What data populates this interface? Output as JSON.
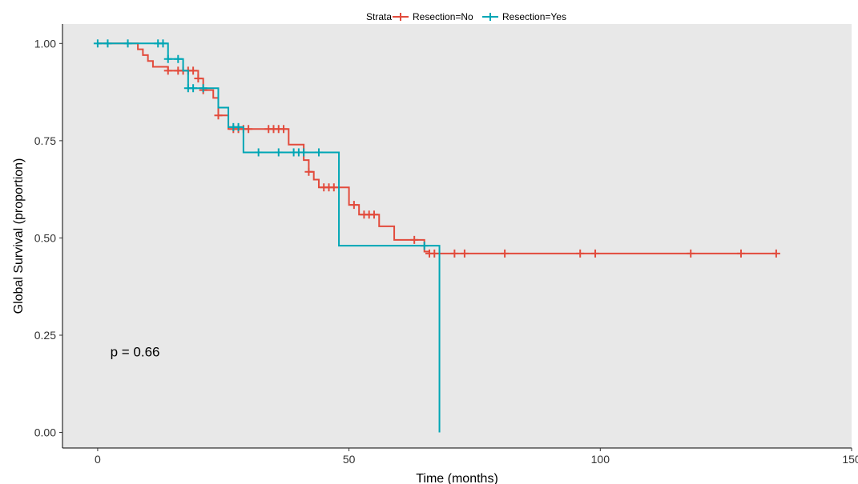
{
  "chart_data": {
    "type": "line",
    "title": "",
    "xlabel": "Time (months)",
    "ylabel": "Global Survival (proportion)",
    "xlim": [
      -7,
      150
    ],
    "ylim": [
      -0.04,
      1.05
    ],
    "x_ticks": [
      0,
      50,
      100,
      150
    ],
    "x_tick_labels": [
      "0",
      "50",
      "100",
      "150"
    ],
    "y_ticks": [
      0,
      0.25,
      0.5,
      0.75,
      1.0
    ],
    "y_tick_labels": [
      "0.00",
      "0.25",
      "0.50",
      "0.75",
      "1.00"
    ],
    "grid": false,
    "background": "#e8e8e8",
    "legend": {
      "position": "top",
      "title": "Strata",
      "entries": [
        "Resection=No",
        "Resection=Yes"
      ]
    },
    "annotations": [
      {
        "text": "p = 0.66",
        "x": 2.5,
        "y": 0.195
      }
    ],
    "series": [
      {
        "name": "Resection=No",
        "color": "#e24b3c",
        "steps": [
          [
            0,
            1.0
          ],
          [
            8,
            0.985
          ],
          [
            9,
            0.97
          ],
          [
            10,
            0.955
          ],
          [
            11,
            0.94
          ],
          [
            14,
            0.93
          ],
          [
            20,
            0.91
          ],
          [
            21,
            0.88
          ],
          [
            23,
            0.86
          ],
          [
            24,
            0.815
          ],
          [
            26,
            0.78
          ],
          [
            38,
            0.74
          ],
          [
            41,
            0.7
          ],
          [
            42,
            0.67
          ],
          [
            43,
            0.65
          ],
          [
            44,
            0.63
          ],
          [
            50,
            0.585
          ],
          [
            52,
            0.56
          ],
          [
            56,
            0.53
          ],
          [
            59,
            0.495
          ],
          [
            65,
            0.465
          ],
          [
            66,
            0.46
          ],
          [
            135,
            0.46
          ]
        ],
        "censor_x": [
          14,
          16,
          17,
          18,
          19,
          20,
          21,
          24,
          27,
          28,
          29,
          30,
          34,
          35,
          36,
          37,
          42,
          45,
          46,
          47,
          51,
          53,
          54,
          55,
          63,
          66,
          67,
          71,
          73,
          81,
          96,
          99,
          118,
          128,
          135
        ]
      },
      {
        "name": "Resection=Yes",
        "color": "#00a6b5",
        "steps": [
          [
            0,
            1.0
          ],
          [
            14,
            0.96
          ],
          [
            17,
            0.93
          ],
          [
            18,
            0.885
          ],
          [
            24,
            0.835
          ],
          [
            26,
            0.785
          ],
          [
            29,
            0.72
          ],
          [
            48,
            0.48
          ],
          [
            68,
            0.0
          ]
        ],
        "censor_x": [
          0,
          2,
          6,
          12,
          13,
          14,
          16,
          18,
          19,
          21,
          27,
          28,
          32,
          36,
          39,
          40,
          41,
          44,
          65
        ]
      }
    ]
  }
}
